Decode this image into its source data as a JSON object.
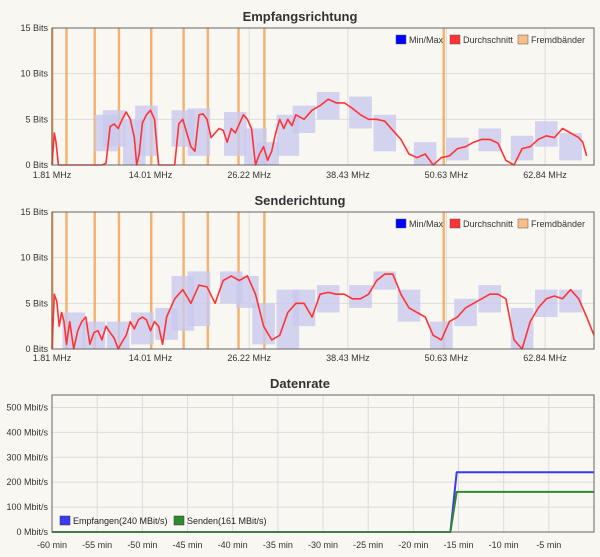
{
  "colors": {
    "background": "#f9f7f2",
    "minmax": "#0000ff",
    "minmax_band": "#c9c9ee",
    "durchschnitt": "#ff3333",
    "fremdbaender": "#f7c088",
    "fremdbaender_line": "#f5a356",
    "receive": "#3a3af0",
    "send": "#2e8a2e"
  },
  "chart_data": [
    {
      "type": "line",
      "title": "Empfangsrichtung",
      "xlabel": "",
      "ylabel": "",
      "xticks": [
        "1.81 MHz",
        "14.01 MHz",
        "26.22 MHz",
        "38.43 MHz",
        "50.63 MHz",
        "62.84 MHz"
      ],
      "xtick_values": [
        1.81,
        14.01,
        26.22,
        38.43,
        50.63,
        62.84
      ],
      "xlim": [
        1.81,
        68.9
      ],
      "yticks": [
        "0 Bits",
        "5 Bits",
        "10 Bits",
        "15 Bits"
      ],
      "ylim": [
        0,
        15
      ],
      "grid": true,
      "legend": [
        "Min/Max",
        "Durchschnitt",
        "Fremdbänder"
      ],
      "legend_position": "top-right",
      "fremdbaender_mhz": [
        1.85,
        3.6,
        7.1,
        10.1,
        14.1,
        18.1,
        21.1,
        24.9,
        28.1,
        50.3
      ],
      "series": [
        {
          "name": "Durchschnitt",
          "x": [
            1.81,
            2.1,
            2.3,
            2.6,
            2.9,
            3.2,
            3.6,
            4.5,
            6.0,
            7.0,
            7.5,
            8.0,
            8.5,
            9.0,
            9.5,
            10.0,
            10.5,
            11.0,
            11.5,
            12.0,
            12.3,
            12.6,
            13.0,
            13.5,
            14.0,
            14.5,
            15.0,
            15.5,
            16.0,
            16.5,
            17.0,
            17.5,
            18.0,
            18.5,
            19.0,
            19.5,
            20.0,
            20.5,
            21.0,
            21.5,
            22.0,
            22.5,
            23.0,
            23.5,
            24.0,
            24.5,
            25.0,
            25.5,
            26.0,
            26.5,
            27.0,
            27.5,
            28.0,
            28.5,
            29.0,
            29.5,
            30.0,
            30.5,
            31.0,
            31.5,
            32.0,
            33.0,
            34.0,
            35.0,
            36.0,
            37.0,
            38.0,
            39.0,
            40.0,
            41.0,
            42.0,
            43.0,
            44.0,
            45.0,
            46.0,
            47.0,
            48.0,
            49.0,
            50.0,
            51.0,
            52.0,
            53.0,
            54.0,
            55.0,
            56.0,
            57.0,
            58.0,
            59.0,
            60.0,
            61.0,
            62.0,
            63.0,
            64.0,
            65.0,
            66.0,
            67.0,
            67.5,
            68.0
          ],
          "y": [
            0,
            3.5,
            2.5,
            0,
            0,
            0,
            0,
            0,
            0,
            0,
            0,
            0,
            0.2,
            4.2,
            4.5,
            4.0,
            5.0,
            5.8,
            5.0,
            3.0,
            0,
            1.2,
            4.6,
            5.5,
            6.0,
            5.0,
            0,
            0,
            0,
            0,
            0,
            4.5,
            5.0,
            3.5,
            2.0,
            1.5,
            5.5,
            5.6,
            5.0,
            3.0,
            3.5,
            4.0,
            3.8,
            2.5,
            4.0,
            3.5,
            4.5,
            5.5,
            5.0,
            4.0,
            0,
            1.2,
            2.0,
            0.5,
            1.5,
            3.5,
            5.0,
            4.0,
            5.0,
            4.3,
            5.5,
            5.0,
            6.0,
            6.5,
            7.2,
            6.8,
            6.8,
            6.2,
            5.5,
            5.0,
            5.0,
            4.8,
            3.8,
            2.8,
            1.2,
            0.8,
            1.2,
            0,
            0.8,
            1.0,
            1.8,
            2.0,
            2.5,
            2.8,
            2.8,
            2.4,
            0.5,
            0,
            1.8,
            2.0,
            2.8,
            3.2,
            3.0,
            4.0,
            3.5,
            3.0,
            2.5,
            1.0
          ]
        },
        {
          "name": "Min/Max",
          "x": [
            4.0,
            6.0,
            8.5,
            9.5,
            12.0,
            13.5,
            18.0,
            20.0,
            24.5,
            27.0,
            28.5,
            31.0,
            33.0,
            36.0,
            40.0,
            43.0,
            48.0,
            52.0,
            56.0,
            60.0,
            63.0,
            66.0
          ],
          "y_min": [
            0,
            0,
            1.5,
            2.0,
            0,
            1.0,
            2.0,
            1.0,
            1.0,
            0,
            0,
            1.0,
            3.5,
            5.0,
            4.0,
            1.5,
            0,
            0.5,
            1.5,
            0.5,
            2.0,
            0.5
          ],
          "y_max": [
            0,
            0,
            5.5,
            6.0,
            5.0,
            6.5,
            6.0,
            6.2,
            5.8,
            4.0,
            2.5,
            5.5,
            6.5,
            8.0,
            7.5,
            5.5,
            2.5,
            3.0,
            4.0,
            3.2,
            4.8,
            3.5
          ]
        }
      ]
    },
    {
      "type": "line",
      "title": "Senderichtung",
      "xlabel": "",
      "ylabel": "",
      "xticks": [
        "1.81 MHz",
        "14.01 MHz",
        "26.22 MHz",
        "38.43 MHz",
        "50.63 MHz",
        "62.84 MHz"
      ],
      "xtick_values": [
        1.81,
        14.01,
        26.22,
        38.43,
        50.63,
        62.84
      ],
      "xlim": [
        1.81,
        68.9
      ],
      "yticks": [
        "0 Bits",
        "5 Bits",
        "10 Bits",
        "15 Bits"
      ],
      "ylim": [
        0,
        15
      ],
      "grid": true,
      "legend": [
        "Min/Max",
        "Durchschnitt",
        "Fremdbänder"
      ],
      "legend_position": "top-right",
      "fremdbaender_mhz": [
        1.85,
        3.6,
        7.1,
        10.1,
        14.1,
        18.1,
        21.1,
        24.9,
        28.1,
        50.3
      ],
      "series": [
        {
          "name": "Durchschnitt",
          "x": [
            1.81,
            2.1,
            2.4,
            2.7,
            3.0,
            3.3,
            3.6,
            4.0,
            4.5,
            5.0,
            5.5,
            6.0,
            6.5,
            7.0,
            7.5,
            8.0,
            8.5,
            9.0,
            9.5,
            10.0,
            10.5,
            11.0,
            11.5,
            12.0,
            12.5,
            13.0,
            13.5,
            14.0,
            14.5,
            15.0,
            15.5,
            16.0,
            17.0,
            18.0,
            19.0,
            20.0,
            21.0,
            22.0,
            23.0,
            24.0,
            25.0,
            26.0,
            27.0,
            28.0,
            29.0,
            30.0,
            31.0,
            32.0,
            33.0,
            34.0,
            35.0,
            36.0,
            37.0,
            38.0,
            39.0,
            40.0,
            41.0,
            42.0,
            43.0,
            44.0,
            45.0,
            46.0,
            47.0,
            48.0,
            49.0,
            50.0,
            51.0,
            52.0,
            53.0,
            54.0,
            55.0,
            56.0,
            57.0,
            58.0,
            59.0,
            60.0,
            61.0,
            62.0,
            63.0,
            64.0,
            65.0,
            66.0,
            67.0,
            68.0,
            68.9
          ],
          "y": [
            0,
            6.0,
            5.2,
            2.5,
            4.0,
            3.0,
            0.5,
            3.0,
            0,
            2.0,
            3.0,
            3.5,
            0.5,
            1.8,
            2.0,
            1.0,
            2.5,
            1.8,
            1.2,
            0,
            0.8,
            1.5,
            3.0,
            2.2,
            3.2,
            3.5,
            3.2,
            2.0,
            3.0,
            2.5,
            0.5,
            3.5,
            5.5,
            6.5,
            5.0,
            7.0,
            6.8,
            5.0,
            7.5,
            8.0,
            7.5,
            8.0,
            6.0,
            2.5,
            1.0,
            1.5,
            4.0,
            5.0,
            5.0,
            3.5,
            6.0,
            6.2,
            6.0,
            6.0,
            5.5,
            5.5,
            6.0,
            7.5,
            8.2,
            8.2,
            6.0,
            4.5,
            4.0,
            3.5,
            1.5,
            1.0,
            3.0,
            3.5,
            4.5,
            5.0,
            5.5,
            6.0,
            6.0,
            5.5,
            1.0,
            0,
            3.0,
            4.5,
            5.5,
            5.8,
            5.5,
            6.5,
            5.5,
            3.5,
            1.5
          ]
        },
        {
          "name": "Min/Max",
          "x": [
            4.5,
            7.0,
            10.0,
            13.0,
            16.0,
            18.0,
            20.0,
            24.0,
            26.0,
            28.0,
            31.0,
            33.0,
            36.0,
            40.0,
            43.0,
            46.0,
            50.0,
            53.0,
            56.0,
            60.0,
            63.0,
            66.0
          ],
          "y_min": [
            0,
            0,
            0,
            0.5,
            1.0,
            2.0,
            2.5,
            5.0,
            4.5,
            0.5,
            0,
            2.5,
            4.0,
            4.5,
            6.5,
            3.0,
            0,
            2.5,
            4.0,
            0,
            3.5,
            4.0
          ],
          "y_max": [
            4.0,
            3.0,
            3.0,
            4.0,
            4.5,
            8.0,
            8.5,
            8.5,
            8.0,
            5.0,
            6.5,
            6.5,
            7.0,
            7.0,
            8.5,
            6.5,
            3.0,
            5.5,
            7.0,
            4.5,
            6.5,
            6.5
          ]
        }
      ]
    },
    {
      "type": "line",
      "title": "Datenrate",
      "xlabel": "",
      "ylabel": "",
      "xticks": [
        "-60 min",
        "-55 min",
        "-50 min",
        "-45 min",
        "-40 min",
        "-35 min",
        "-30 min",
        "-25 min",
        "-20 min",
        "-15 min",
        "-10 min",
        "-5 min"
      ],
      "xtick_values": [
        -60,
        -55,
        -50,
        -45,
        -40,
        -35,
        -30,
        -25,
        -20,
        -15,
        -10,
        -5
      ],
      "xlim": [
        -60,
        0
      ],
      "yticks": [
        "0 Mbit/s",
        "100 Mbit/s",
        "200 Mbit/s",
        "300 Mbit/s",
        "400 Mbit/s",
        "500 Mbit/s"
      ],
      "ylim": [
        0,
        550
      ],
      "grid": true,
      "legend": [
        "Empfangen(240 MBit/s)",
        "Senden(161 MBit/s)"
      ],
      "legend_position": "bottom-left",
      "series": [
        {
          "name": "Empfangen(240 MBit/s)",
          "x": [
            -60,
            -15.9,
            -15.2,
            0
          ],
          "y": [
            0,
            0,
            240,
            240
          ]
        },
        {
          "name": "Senden(161 MBit/s)",
          "x": [
            -60,
            -15.9,
            -15.2,
            0
          ],
          "y": [
            0,
            0,
            161,
            161
          ]
        }
      ]
    }
  ]
}
